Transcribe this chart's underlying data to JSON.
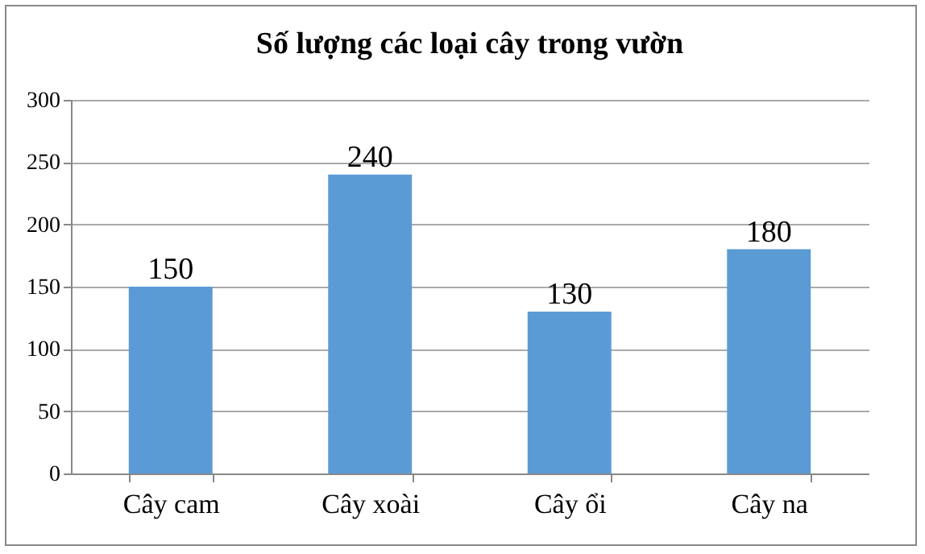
{
  "chart_data": {
    "type": "bar",
    "title": "Số lượng các loại cây trong vườn",
    "categories": [
      "Cây cam",
      "Cây xoài",
      "Cây ổi",
      "Cây na"
    ],
    "values": [
      150,
      240,
      130,
      180
    ],
    "color": "#5b9bd5",
    "ylim": [
      0,
      300
    ],
    "yticks": [
      0,
      50,
      100,
      150,
      200,
      250,
      300
    ],
    "grid": "y",
    "data_labels": true
  }
}
